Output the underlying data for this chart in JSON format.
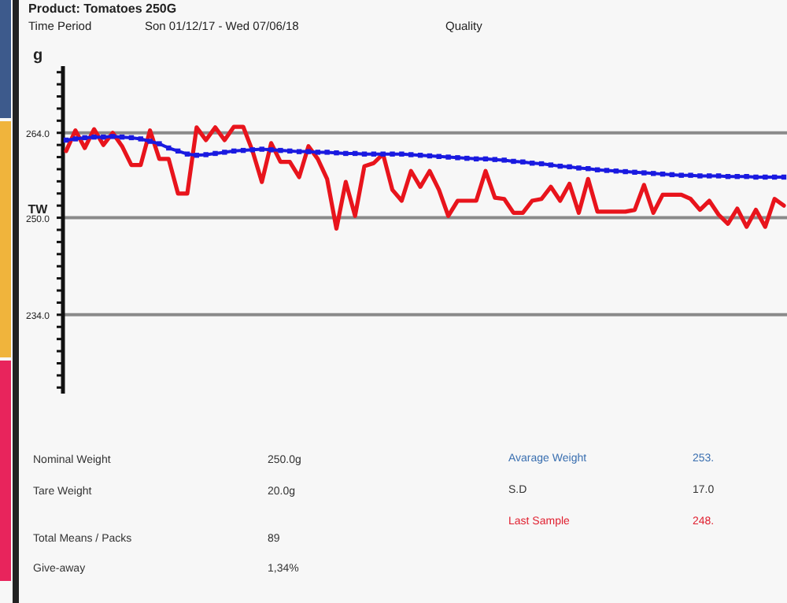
{
  "chart_data": {
    "type": "line",
    "title": "Product: Tomatoes 250G",
    "ylabel": "g",
    "categories": [
      null,
      null,
      null,
      null,
      null,
      null,
      null,
      null,
      null,
      null,
      null,
      null,
      null,
      null,
      null,
      null,
      null,
      null,
      null,
      null,
      null,
      null,
      null,
      null,
      null,
      null,
      null,
      null,
      null,
      null,
      null,
      null,
      null,
      null,
      null,
      null,
      null,
      null,
      null,
      null,
      null,
      null,
      null,
      null,
      null,
      null,
      null,
      null,
      null,
      null,
      null,
      null,
      null,
      null,
      null,
      null,
      null,
      null,
      null,
      null,
      null,
      null,
      null,
      null,
      null,
      null,
      null,
      null,
      null,
      null,
      null,
      null,
      null,
      null,
      null,
      null,
      null,
      null
    ],
    "series": [
      {
        "color": "#e8141c",
        "values": [
          261,
          264.4,
          261.5,
          264.6,
          262,
          264,
          261.8,
          258.7,
          258.7,
          264.4,
          259.7,
          259.7,
          254,
          254,
          264.9,
          262.8,
          264.9,
          262.8,
          265,
          265,
          261,
          255.9,
          262.3,
          259.2,
          259.2,
          256.7,
          261.8,
          259.7,
          256.4,
          248.2,
          255.9,
          250.3,
          258.5,
          259,
          260.5,
          254.6,
          252.8,
          257.7,
          255.1,
          257.7,
          254.6,
          250.3,
          252.8,
          252.8,
          252.8,
          257.7,
          253.3,
          253.1,
          250.8,
          250.8,
          252.8,
          253.1,
          255.1,
          252.8,
          255.6,
          250.8,
          256.4,
          251,
          251,
          251,
          251,
          251.3,
          255.4,
          250.8,
          253.8,
          253.8,
          253.8,
          253.1,
          251.3,
          252.8,
          250.5,
          249,
          251.5,
          248.5,
          251.3,
          248.5,
          253.1,
          252
        ]
      },
      {
        "color": "#1a1ae0",
        "marker": "square",
        "values": [
          262.8,
          263,
          263.2,
          263.3,
          263.3,
          263.4,
          263.3,
          263.2,
          263,
          262.6,
          262.2,
          261.5,
          261,
          260.5,
          260.3,
          260.4,
          260.6,
          260.8,
          261,
          261.1,
          261.2,
          261.3,
          261.2,
          261.1,
          261,
          260.9,
          260.9,
          260.8,
          260.8,
          260.7,
          260.6,
          260.6,
          260.5,
          260.5,
          260.5,
          260.5,
          260.5,
          260.4,
          260.3,
          260.2,
          260.1,
          260,
          259.9,
          259.8,
          259.7,
          259.7,
          259.6,
          259.5,
          259.3,
          259.2,
          259,
          258.9,
          258.7,
          258.5,
          258.4,
          258.2,
          258.1,
          257.9,
          257.8,
          257.7,
          257.6,
          257.5,
          257.4,
          257.3,
          257.2,
          257.1,
          257,
          257,
          256.9,
          256.9,
          256.9,
          256.8,
          256.8,
          256.8,
          256.7,
          256.7,
          256.7,
          256.7
        ]
      }
    ],
    "ylim": [
      221,
      275
    ],
    "yticks": [
      {
        "value": 222,
        "label": null
      },
      {
        "value": 224,
        "label": null
      },
      {
        "value": 226,
        "label": null
      },
      {
        "value": 228,
        "label": null
      },
      {
        "value": 230,
        "label": null
      },
      {
        "value": 232,
        "label": null
      },
      {
        "value": 234,
        "label": "234.0"
      },
      {
        "value": 236,
        "label": null
      },
      {
        "value": 238,
        "label": null
      },
      {
        "value": 240,
        "label": null
      },
      {
        "value": 242,
        "label": null
      },
      {
        "value": 244,
        "label": null
      },
      {
        "value": 246,
        "label": null
      },
      {
        "value": 248,
        "label": null
      },
      {
        "value": 250,
        "label": "250.0"
      },
      {
        "value": 252,
        "label": null
      },
      {
        "value": 254,
        "label": null
      },
      {
        "value": 256,
        "label": null
      },
      {
        "value": 258,
        "label": null
      },
      {
        "value": 260,
        "label": null
      },
      {
        "value": 262,
        "label": null
      },
      {
        "value": 264,
        "label": "264.0"
      },
      {
        "value": 266,
        "label": null
      },
      {
        "value": 268,
        "label": null
      },
      {
        "value": 270,
        "label": null
      },
      {
        "value": 272,
        "label": null
      },
      {
        "value": 274,
        "label": null
      }
    ],
    "marker": "none",
    "line_style": "solid",
    "ref_lines": [
      {
        "axis": "y",
        "value": 264,
        "color": "#8a8a8a"
      },
      {
        "axis": "y",
        "value": 250,
        "label": "TW",
        "color": "#8a8a8a"
      },
      {
        "axis": "y",
        "value": 234,
        "color": "#8a8a8a"
      }
    ],
    "annotations": [
      "Time Period",
      "Son 01/12/17 - Wed 07/06/18",
      "Quality",
      "Nominal Weight",
      "250.0g",
      "Tare Weight",
      "20.0g",
      "Total Means / Packs",
      "89",
      "Give-away",
      "1,34%",
      "Avarage Weight",
      "253.",
      "S.D",
      "17.0",
      "Last Sample",
      "248."
    ]
  }
}
